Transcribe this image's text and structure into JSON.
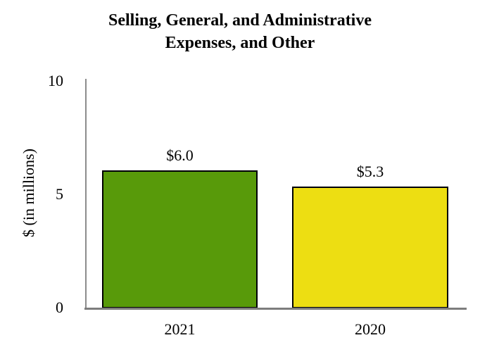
{
  "title_lines": [
    "Selling, General, and Administrative",
    "Expenses, and Other"
  ],
  "y_axis": {
    "label": "$ (in millions)",
    "ticks": [
      "10",
      "5",
      "0"
    ]
  },
  "chart_data": {
    "type": "bar",
    "title": "Selling, General, and Administrative Expenses, and Other",
    "xlabel": "",
    "ylabel": "$ (in millions)",
    "ylim": [
      0,
      10
    ],
    "yticks": [
      0,
      5,
      10
    ],
    "grid": false,
    "legend": false,
    "categories": [
      "2021",
      "2020"
    ],
    "values": [
      6.0,
      5.3
    ],
    "value_labels": [
      "$6.0",
      "$5.3"
    ],
    "bar_colors": [
      "#589A0A",
      "#EDDE12"
    ],
    "bar_border_color": "#000000",
    "axis_color": "#808080"
  }
}
